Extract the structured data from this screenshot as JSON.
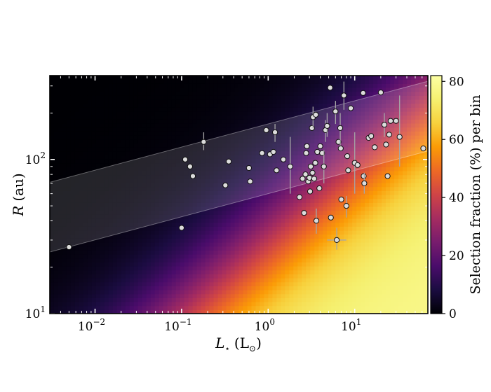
{
  "chart_data": {
    "type": "scatter",
    "title": "",
    "xlabel_symbol": "L",
    "xlabel_sub": "⋆",
    "xlabel_unit": "(L",
    "xlabel_unit_sub": "⊙",
    "xlabel_unit_end": ")",
    "ylabel_symbol": "R",
    "ylabel_unit": "(au)",
    "xscale": "log",
    "yscale": "log",
    "xlim": [
      0.003,
      70
    ],
    "ylim": [
      10,
      350
    ],
    "xticks": [
      {
        "value": 0.01,
        "base": "10",
        "exp": "−2"
      },
      {
        "value": 0.1,
        "base": "10",
        "exp": "−1"
      },
      {
        "value": 1,
        "base": "10",
        "exp": "0"
      },
      {
        "value": 10,
        "base": "10",
        "exp": "1"
      }
    ],
    "yticks": [
      {
        "value": 10,
        "base": "10",
        "exp": "1"
      },
      {
        "value": 100,
        "base": "10",
        "exp": "2"
      }
    ],
    "background": "selection-fraction colormap (inferno), increasing toward high L and low R",
    "band": {
      "slope": 0.15,
      "lower_at_L1": 60,
      "upper_at_L1": 170
    },
    "colorbar": {
      "label": "Selection fraction (%) per bin",
      "min": 0,
      "max": 82,
      "ticks": [
        {
          "value": 0,
          "label": "0"
        },
        {
          "value": 20,
          "label": "20"
        },
        {
          "value": 40,
          "label": "40"
        },
        {
          "value": 60,
          "label": "60"
        },
        {
          "value": 80,
          "label": "80"
        }
      ],
      "colormap": "inferno"
    },
    "points": [
      {
        "x": 0.005,
        "y": 27
      },
      {
        "x": 0.1,
        "y": 36
      },
      {
        "x": 0.11,
        "y": 100
      },
      {
        "x": 0.125,
        "y": 90
      },
      {
        "x": 0.135,
        "y": 78
      },
      {
        "x": 0.18,
        "y": 130,
        "yerr": [
          115,
          150
        ]
      },
      {
        "x": 0.32,
        "y": 68
      },
      {
        "x": 0.35,
        "y": 97
      },
      {
        "x": 0.6,
        "y": 88
      },
      {
        "x": 0.62,
        "y": 72
      },
      {
        "x": 0.85,
        "y": 110
      },
      {
        "x": 0.95,
        "y": 155
      },
      {
        "x": 1.05,
        "y": 108
      },
      {
        "x": 1.15,
        "y": 112
      },
      {
        "x": 1.2,
        "y": 150,
        "yerr": [
          130,
          170
        ]
      },
      {
        "x": 1.25,
        "y": 85
      },
      {
        "x": 1.5,
        "y": 100
      },
      {
        "x": 1.8,
        "y": 90,
        "yerr": [
          60,
          140
        ]
      },
      {
        "x": 2.3,
        "y": 57
      },
      {
        "x": 2.5,
        "y": 75
      },
      {
        "x": 2.6,
        "y": 45
      },
      {
        "x": 2.7,
        "y": 80
      },
      {
        "x": 2.75,
        "y": 110
      },
      {
        "x": 2.8,
        "y": 122
      },
      {
        "x": 2.9,
        "y": 72
      },
      {
        "x": 3.0,
        "y": 76
      },
      {
        "x": 3.05,
        "y": 62
      },
      {
        "x": 3.1,
        "y": 90
      },
      {
        "x": 3.2,
        "y": 160
      },
      {
        "x": 3.25,
        "y": 82
      },
      {
        "x": 3.3,
        "y": 188,
        "yerr": [
          160,
          220
        ]
      },
      {
        "x": 3.4,
        "y": 75
      },
      {
        "x": 3.5,
        "y": 95
      },
      {
        "x": 3.55,
        "y": 195
      },
      {
        "x": 3.6,
        "y": 40,
        "yerr": [
          33,
          48
        ]
      },
      {
        "x": 3.7,
        "y": 112
      },
      {
        "x": 3.9,
        "y": 65
      },
      {
        "x": 4.0,
        "y": 122
      },
      {
        "x": 4.2,
        "y": 110
      },
      {
        "x": 4.4,
        "y": 90,
        "yerr": [
          70,
          115
        ]
      },
      {
        "x": 4.6,
        "y": 155,
        "yerr": [
          130,
          180
        ]
      },
      {
        "x": 4.8,
        "y": 165,
        "yerr": [
          140,
          200
        ]
      },
      {
        "x": 5.2,
        "y": 292
      },
      {
        "x": 5.3,
        "y": 42
      },
      {
        "x": 6.0,
        "y": 205,
        "yerr": [
          170,
          240
        ]
      },
      {
        "x": 6.2,
        "y": 30,
        "yerr": [
          26,
          36
        ],
        "xerr": [
          4.8,
          8.0
        ]
      },
      {
        "x": 6.5,
        "y": 130
      },
      {
        "x": 6.8,
        "y": 160,
        "yerr": [
          120,
          200
        ]
      },
      {
        "x": 6.9,
        "y": 118
      },
      {
        "x": 7.0,
        "y": 55
      },
      {
        "x": 7.5,
        "y": 260,
        "yerr": [
          210,
          320
        ]
      },
      {
        "x": 8.0,
        "y": 50,
        "yerr": [
          42,
          58
        ]
      },
      {
        "x": 8.2,
        "y": 105
      },
      {
        "x": 8.4,
        "y": 85
      },
      {
        "x": 9.0,
        "y": 215
      },
      {
        "x": 10.0,
        "y": 95,
        "yerr": [
          60,
          150
        ]
      },
      {
        "x": 10.8,
        "y": 92
      },
      {
        "x": 12.5,
        "y": 270
      },
      {
        "x": 12.7,
        "y": 78
      },
      {
        "x": 12.9,
        "y": 70,
        "yerr": [
          60,
          82
        ]
      },
      {
        "x": 14.5,
        "y": 138
      },
      {
        "x": 15.5,
        "y": 142
      },
      {
        "x": 17.0,
        "y": 120
      },
      {
        "x": 20.0,
        "y": 272
      },
      {
        "x": 22.0,
        "y": 168,
        "yerr": [
          140,
          200
        ]
      },
      {
        "x": 23.0,
        "y": 125
      },
      {
        "x": 24.0,
        "y": 78
      },
      {
        "x": 25.0,
        "y": 145
      },
      {
        "x": 26.0,
        "y": 178
      },
      {
        "x": 30.0,
        "y": 178
      },
      {
        "x": 33.0,
        "y": 140,
        "yerr": [
          90,
          260
        ]
      },
      {
        "x": 62.0,
        "y": 118
      }
    ]
  }
}
